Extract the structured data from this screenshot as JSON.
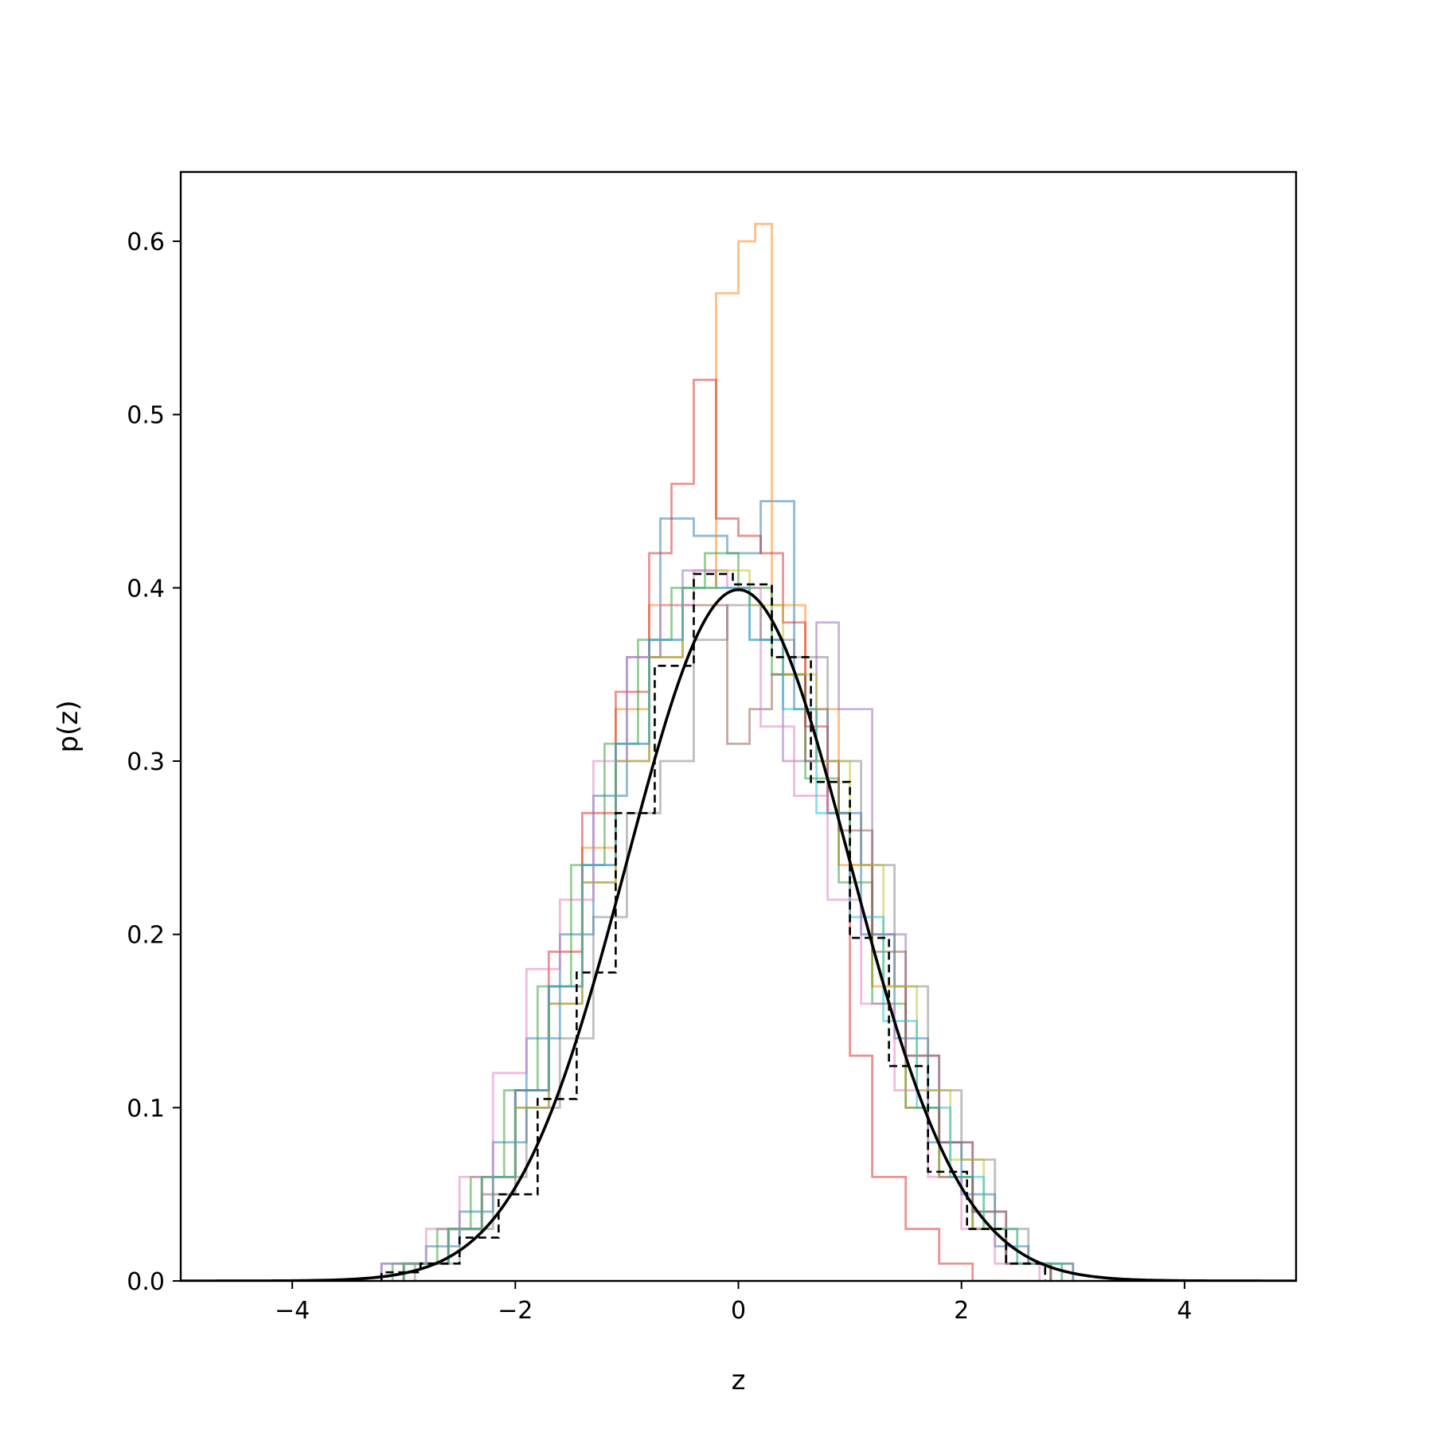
{
  "chart_data": {
    "type": "line",
    "title": "",
    "xlabel": "z",
    "ylabel": "p(z)",
    "xlim": [
      -5,
      5
    ],
    "ylim": [
      0,
      0.64
    ],
    "grid": false,
    "legend": "none",
    "xticks": [
      -4,
      -2,
      0,
      2,
      4
    ],
    "xtick_labels": [
      "−4",
      "−2",
      "0",
      "2",
      "4"
    ],
    "yticks": [
      0.0,
      0.1,
      0.2,
      0.3,
      0.4,
      0.5,
      0.6
    ],
    "ytick_labels": [
      "0.0",
      "0.1",
      "0.2",
      "0.3",
      "0.4",
      "0.5",
      "0.6"
    ],
    "series": [
      {
        "style": "step",
        "color": "#1f77b4",
        "edges": [
          -3.2,
          -2.8,
          -2.5,
          -2.2,
          -1.9,
          -1.6,
          -1.3,
          -1.0,
          -0.7,
          -0.4,
          -0.1,
          0.2,
          0.5,
          0.8,
          1.1,
          1.4,
          1.7,
          2.0,
          2.3,
          2.6,
          3.0
        ],
        "values": [
          0.01,
          0.02,
          0.04,
          0.08,
          0.14,
          0.2,
          0.28,
          0.36,
          0.44,
          0.43,
          0.42,
          0.45,
          0.33,
          0.27,
          0.2,
          0.14,
          0.08,
          0.05,
          0.02,
          0.01
        ]
      },
      {
        "style": "step",
        "color": "#ff7f0e",
        "edges": [
          -3.0,
          -2.6,
          -2.3,
          -2.0,
          -1.7,
          -1.4,
          -1.1,
          -0.8,
          -0.5,
          -0.2,
          0.0,
          0.15,
          0.3,
          0.6,
          0.9,
          1.2,
          1.5,
          1.8,
          2.1,
          2.4,
          2.8
        ],
        "values": [
          0.01,
          0.03,
          0.06,
          0.11,
          0.17,
          0.25,
          0.33,
          0.39,
          0.4,
          0.57,
          0.6,
          0.61,
          0.39,
          0.33,
          0.24,
          0.17,
          0.1,
          0.06,
          0.03,
          0.01
        ]
      },
      {
        "style": "step",
        "color": "#2ca02c",
        "edges": [
          -3.1,
          -2.7,
          -2.4,
          -2.1,
          -1.8,
          -1.5,
          -1.2,
          -0.9,
          -0.6,
          -0.3,
          0.0,
          0.3,
          0.6,
          0.9,
          1.2,
          1.5,
          1.8,
          2.1,
          2.4,
          2.8
        ],
        "values": [
          0.01,
          0.03,
          0.06,
          0.11,
          0.17,
          0.24,
          0.31,
          0.37,
          0.4,
          0.42,
          0.4,
          0.35,
          0.29,
          0.23,
          0.16,
          0.1,
          0.06,
          0.03,
          0.01
        ]
      },
      {
        "style": "step",
        "color": "#d62728",
        "edges": [
          -3.0,
          -2.6,
          -2.3,
          -2.0,
          -1.7,
          -1.4,
          -1.1,
          -0.8,
          -0.6,
          -0.4,
          -0.2,
          0.0,
          0.2,
          0.4,
          0.6,
          0.8,
          1.0,
          1.2,
          1.5,
          1.8,
          2.1,
          2.4
        ],
        "values": [
          0.01,
          0.03,
          0.06,
          0.11,
          0.19,
          0.27,
          0.34,
          0.42,
          0.46,
          0.52,
          0.44,
          0.43,
          0.42,
          0.38,
          0.32,
          0.27,
          0.13,
          0.06,
          0.03,
          0.01,
          0.0
        ]
      },
      {
        "style": "step",
        "color": "#9467bd",
        "edges": [
          -3.0,
          -2.6,
          -2.3,
          -2.0,
          -1.7,
          -1.4,
          -1.1,
          -0.8,
          -0.5,
          -0.2,
          0.1,
          0.4,
          0.7,
          0.9,
          1.2,
          1.5,
          1.8,
          2.1,
          2.4,
          2.8
        ],
        "values": [
          0.01,
          0.03,
          0.06,
          0.11,
          0.17,
          0.24,
          0.31,
          0.37,
          0.41,
          0.4,
          0.37,
          0.3,
          0.38,
          0.33,
          0.2,
          0.13,
          0.08,
          0.04,
          0.01
        ]
      },
      {
        "style": "step",
        "color": "#8c564b",
        "edges": [
          -3.0,
          -2.6,
          -2.3,
          -2.0,
          -1.7,
          -1.4,
          -1.1,
          -0.8,
          -0.5,
          -0.1,
          0.1,
          0.3,
          0.6,
          0.9,
          1.2,
          1.5,
          1.8,
          2.1,
          2.4,
          2.8
        ],
        "values": [
          0.01,
          0.03,
          0.05,
          0.1,
          0.16,
          0.23,
          0.3,
          0.36,
          0.39,
          0.31,
          0.33,
          0.35,
          0.3,
          0.26,
          0.19,
          0.13,
          0.08,
          0.04,
          0.01
        ]
      },
      {
        "style": "step",
        "color": "#e377c2",
        "edges": [
          -3.2,
          -2.8,
          -2.5,
          -2.2,
          -1.9,
          -1.6,
          -1.3,
          -1.0,
          -0.7,
          -0.4,
          -0.1,
          0.2,
          0.5,
          0.8,
          1.1,
          1.4,
          1.7,
          2.0,
          2.3,
          2.7
        ],
        "values": [
          0.01,
          0.03,
          0.06,
          0.12,
          0.18,
          0.22,
          0.3,
          0.36,
          0.39,
          0.41,
          0.4,
          0.32,
          0.28,
          0.22,
          0.16,
          0.11,
          0.06,
          0.03,
          0.01
        ]
      },
      {
        "style": "step",
        "color": "#7f7f7f",
        "edges": [
          -2.9,
          -2.5,
          -2.2,
          -1.9,
          -1.6,
          -1.3,
          -1.0,
          -0.7,
          -0.4,
          -0.1,
          0.2,
          0.5,
          0.8,
          1.1,
          1.4,
          1.7,
          2.0,
          2.3,
          2.6,
          3.0
        ],
        "values": [
          0.01,
          0.03,
          0.06,
          0.1,
          0.14,
          0.21,
          0.27,
          0.3,
          0.37,
          0.39,
          0.37,
          0.36,
          0.3,
          0.24,
          0.17,
          0.11,
          0.07,
          0.03,
          0.01
        ]
      },
      {
        "style": "step",
        "color": "#bcbd22",
        "edges": [
          -3.0,
          -2.6,
          -2.3,
          -2.0,
          -1.7,
          -1.4,
          -1.1,
          -0.8,
          -0.5,
          -0.2,
          0.1,
          0.4,
          0.7,
          1.0,
          1.3,
          1.6,
          1.9,
          2.2,
          2.5,
          2.9
        ],
        "values": [
          0.01,
          0.03,
          0.06,
          0.1,
          0.16,
          0.23,
          0.3,
          0.36,
          0.4,
          0.41,
          0.39,
          0.35,
          0.3,
          0.24,
          0.17,
          0.11,
          0.07,
          0.03,
          0.01
        ]
      },
      {
        "style": "step",
        "color": "#17becf",
        "edges": [
          -3.0,
          -2.6,
          -2.3,
          -2.0,
          -1.7,
          -1.4,
          -1.1,
          -0.8,
          -0.5,
          -0.2,
          0.1,
          0.4,
          0.7,
          1.0,
          1.3,
          1.6,
          1.9,
          2.2,
          2.5,
          2.9
        ],
        "values": [
          0.01,
          0.03,
          0.06,
          0.11,
          0.17,
          0.24,
          0.31,
          0.37,
          0.4,
          0.4,
          0.37,
          0.33,
          0.27,
          0.21,
          0.15,
          0.1,
          0.06,
          0.03,
          0.01
        ]
      },
      {
        "style": "dashed-step",
        "color": "#000000",
        "edges": [
          -3.2,
          -2.85,
          -2.5,
          -2.15,
          -1.8,
          -1.45,
          -1.1,
          -0.75,
          -0.4,
          -0.05,
          0.3,
          0.65,
          1.0,
          1.35,
          1.7,
          2.05,
          2.4,
          2.75
        ],
        "values": [
          0.005,
          0.01,
          0.025,
          0.05,
          0.105,
          0.178,
          0.27,
          0.355,
          0.408,
          0.402,
          0.36,
          0.288,
          0.198,
          0.124,
          0.063,
          0.03,
          0.01
        ]
      },
      {
        "style": "line",
        "color": "#000000",
        "function": "standard normal pdf",
        "x_range": [
          -5,
          5
        ]
      }
    ]
  }
}
